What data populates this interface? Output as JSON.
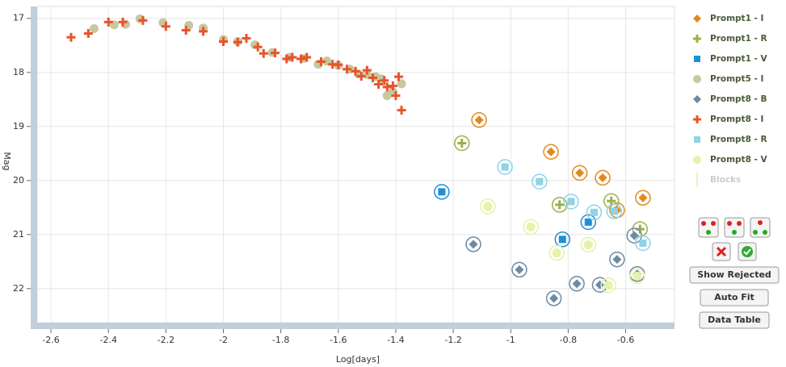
{
  "chart_data": {
    "type": "scatter",
    "x_label": "Log[days]",
    "y_label": "Mag",
    "xlim": [
      -2.648,
      -0.43
    ],
    "ylim": [
      22.63,
      16.78
    ],
    "xticks": [
      -2.6,
      -2.4,
      -2.2,
      -2,
      -1.8,
      -1.6,
      -1.4,
      -1.2,
      -1,
      -0.8,
      -0.6
    ],
    "yticks": [
      17,
      18,
      19,
      20,
      21,
      22
    ],
    "grid": true,
    "legend": "right",
    "series": [
      {
        "name": "Prompt1 - I",
        "color": "#e08a1e",
        "marker": "diamond",
        "ringed": true,
        "x": [
          -1.11,
          -0.86,
          -0.76,
          -0.68,
          -0.63,
          -0.54
        ],
        "values": [
          18.88,
          19.47,
          19.86,
          19.95,
          20.55,
          20.32
        ]
      },
      {
        "name": "Prompt1 - R",
        "color": "#9cb04a",
        "marker": "cross",
        "ringed": true,
        "x": [
          -1.17,
          -0.83,
          -0.65,
          -0.55
        ],
        "values": [
          19.31,
          20.45,
          20.38,
          20.9
        ]
      },
      {
        "name": "Prompt1 - V",
        "color": "#1f8fd6",
        "marker": "square",
        "ringed": true,
        "x": [
          -1.24,
          -0.82,
          -0.73
        ],
        "values": [
          20.21,
          21.09,
          20.77
        ]
      },
      {
        "name": "Prompt5 - I",
        "color": "#c8c79e",
        "marker": "circle",
        "ringed": false,
        "x": [
          -2.45,
          -2.38,
          -2.34,
          -2.29,
          -2.21,
          -2.12,
          -2.07,
          -2.0,
          -1.95,
          -1.89,
          -1.83,
          -1.77,
          -1.72,
          -1.67,
          -1.64,
          -1.6,
          -1.56,
          -1.53,
          -1.5,
          -1.47,
          -1.45,
          -1.43,
          -1.41,
          -1.38
        ],
        "values": [
          17.19,
          17.12,
          17.11,
          17.01,
          17.08,
          17.13,
          17.18,
          17.39,
          17.43,
          17.49,
          17.63,
          17.72,
          17.74,
          17.85,
          17.79,
          17.87,
          17.94,
          18.03,
          18.04,
          18.08,
          18.12,
          18.43,
          18.36,
          18.21
        ]
      },
      {
        "name": "Prompt8 - B",
        "color": "#6b8aa3",
        "marker": "diamond",
        "ringed": true,
        "x": [
          -1.13,
          -0.97,
          -0.85,
          -0.77,
          -0.69,
          -0.63,
          -0.57,
          -0.56
        ],
        "values": [
          21.18,
          21.65,
          22.18,
          21.91,
          21.93,
          21.46,
          21.02,
          21.73
        ]
      },
      {
        "name": "Prompt8 - I",
        "color": "#e8552b",
        "marker": "cross",
        "ringed": false,
        "x": [
          -2.53,
          -2.47,
          -2.4,
          -2.35,
          -2.28,
          -2.2,
          -2.13,
          -2.07,
          -2.0,
          -1.95,
          -1.92,
          -1.88,
          -1.86,
          -1.82,
          -1.78,
          -1.76,
          -1.73,
          -1.71,
          -1.66,
          -1.62,
          -1.6,
          -1.57,
          -1.54,
          -1.52,
          -1.5,
          -1.48,
          -1.46,
          -1.44,
          -1.43,
          -1.41,
          -1.4,
          -1.39,
          -1.38
        ],
        "values": [
          17.35,
          17.28,
          17.07,
          17.07,
          17.04,
          17.15,
          17.22,
          17.24,
          17.43,
          17.44,
          17.37,
          17.53,
          17.65,
          17.64,
          17.75,
          17.72,
          17.75,
          17.72,
          17.8,
          17.85,
          17.86,
          17.94,
          17.98,
          18.07,
          17.96,
          18.1,
          18.22,
          18.15,
          18.27,
          18.25,
          18.43,
          18.08,
          18.7
        ]
      },
      {
        "name": "Prompt8 - R",
        "color": "#8ed3e6",
        "marker": "square",
        "ringed": true,
        "x": [
          -1.02,
          -0.9,
          -0.79,
          -0.71,
          -0.64,
          -0.54
        ],
        "values": [
          19.75,
          20.02,
          20.39,
          20.59,
          20.57,
          21.16
        ]
      },
      {
        "name": "Prompt8 - V",
        "color": "#e6f2a8",
        "marker": "circle",
        "ringed": true,
        "x": [
          -1.08,
          -0.93,
          -0.84,
          -0.73,
          -0.66,
          -0.56
        ],
        "values": [
          20.48,
          20.86,
          21.34,
          21.19,
          21.94,
          21.77
        ]
      },
      {
        "name": "Blocks",
        "color": "#f0f0b8",
        "marker": "bar",
        "ringed": false,
        "x": [],
        "values": []
      }
    ]
  },
  "controls": {
    "buttons": [
      "Show Rejected",
      "Auto Fit",
      "Data Table"
    ]
  }
}
